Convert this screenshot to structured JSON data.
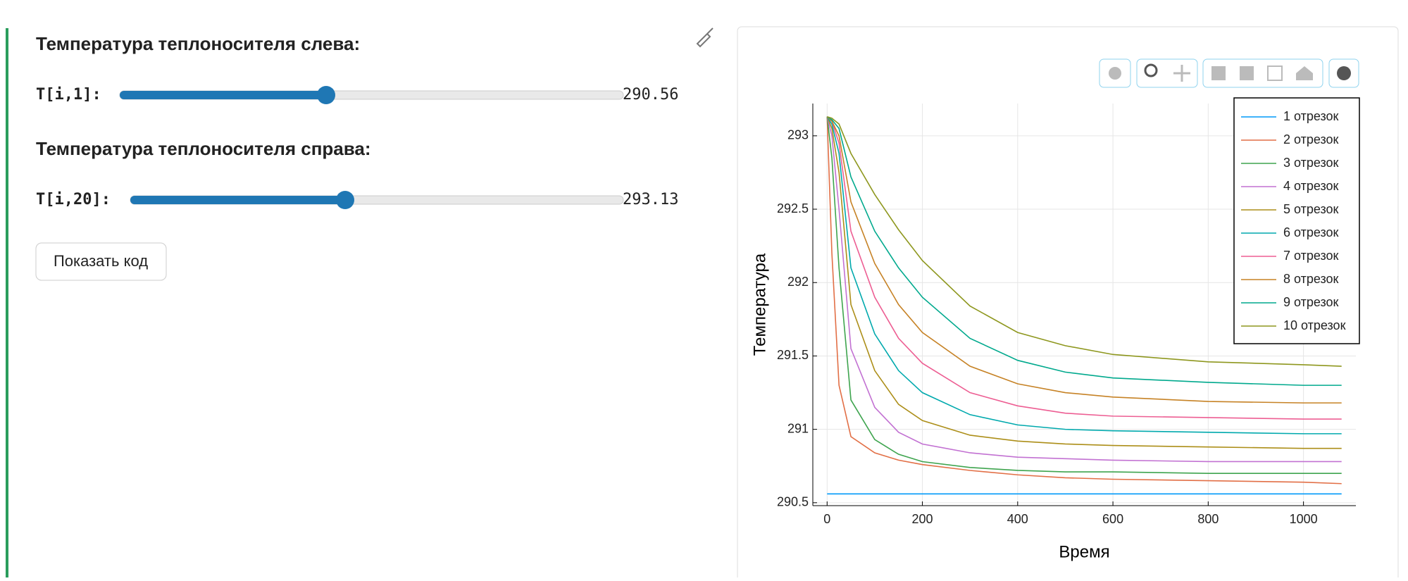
{
  "controls": [
    {
      "heading": "Температура теплоносителя слева:",
      "label": "T[i,1]:",
      "value": "290.56"
    },
    {
      "heading": "Температура теплоносителя справа:",
      "label": "T[i,20]:",
      "value": "293.13"
    }
  ],
  "button": "Показать код",
  "chart_data": {
    "type": "line",
    "x_label": "Время",
    "y_label": "Температура",
    "grid": true,
    "legend": "top-right",
    "x": [
      0,
      10,
      25,
      50,
      100,
      150,
      200,
      300,
      400,
      500,
      600,
      800,
      1000,
      1080
    ],
    "xlim": [
      -30,
      1110
    ],
    "xticks": [
      0,
      200,
      400,
      600,
      800,
      1000
    ],
    "ylim": [
      290.48,
      293.22
    ],
    "yticks": [
      290.5,
      291,
      291.5,
      292,
      292.5,
      293
    ],
    "series": [
      {
        "name": "1 отрезок",
        "color": "#009af9",
        "values": [
          290.56,
          290.56,
          290.56,
          290.56,
          290.56,
          290.56,
          290.56,
          290.56,
          290.56,
          290.56,
          290.56,
          290.56,
          290.56,
          290.56
        ]
      },
      {
        "name": "2 отрезок",
        "color": "#e26f46",
        "values": [
          293.13,
          292.2,
          291.3,
          290.95,
          290.84,
          290.79,
          290.76,
          290.72,
          290.69,
          290.67,
          290.66,
          290.65,
          290.64,
          290.63
        ]
      },
      {
        "name": "3 отрезок",
        "color": "#3ea44e",
        "values": [
          293.13,
          292.85,
          292.1,
          291.2,
          290.93,
          290.83,
          290.78,
          290.74,
          290.72,
          290.71,
          290.71,
          290.7,
          290.7,
          290.7
        ]
      },
      {
        "name": "4 отрезок",
        "color": "#c271d2",
        "values": [
          293.13,
          293.0,
          292.5,
          291.55,
          291.15,
          290.98,
          290.9,
          290.84,
          290.81,
          290.8,
          290.79,
          290.78,
          290.78,
          290.78
        ]
      },
      {
        "name": "5 отрезок",
        "color": "#ac8e18",
        "values": [
          293.13,
          293.05,
          292.75,
          291.85,
          291.4,
          291.17,
          291.06,
          290.96,
          290.92,
          290.9,
          290.89,
          290.88,
          290.87,
          290.87
        ]
      },
      {
        "name": "6 отрезок",
        "color": "#00a9ad",
        "values": [
          293.13,
          293.08,
          292.88,
          292.1,
          291.65,
          291.4,
          291.25,
          291.1,
          291.03,
          291.0,
          290.99,
          290.98,
          290.97,
          290.97
        ]
      },
      {
        "name": "7 отрезок",
        "color": "#ed5e93",
        "values": [
          293.13,
          293.1,
          292.95,
          292.35,
          291.9,
          291.62,
          291.45,
          291.25,
          291.16,
          291.11,
          291.09,
          291.08,
          291.07,
          291.07
        ]
      },
      {
        "name": "8 отрезок",
        "color": "#c68225",
        "values": [
          293.13,
          293.1,
          293.0,
          292.55,
          292.13,
          291.85,
          291.66,
          291.43,
          291.31,
          291.25,
          291.22,
          291.19,
          291.18,
          291.18
        ]
      },
      {
        "name": "9 отрезок",
        "color": "#00a98d",
        "values": [
          293.13,
          293.11,
          293.05,
          292.72,
          292.35,
          292.1,
          291.9,
          291.62,
          291.47,
          291.39,
          291.35,
          291.32,
          291.3,
          291.3
        ]
      },
      {
        "name": "10 отрезок",
        "color": "#8e971e",
        "values": [
          293.13,
          293.12,
          293.08,
          292.88,
          292.6,
          292.36,
          292.15,
          291.84,
          291.66,
          291.57,
          291.51,
          291.46,
          291.44,
          291.43
        ]
      }
    ]
  }
}
